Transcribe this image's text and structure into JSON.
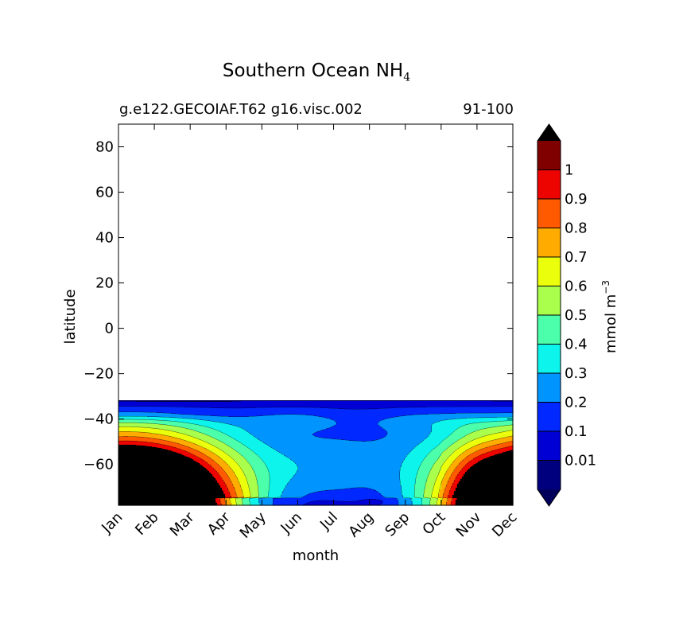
{
  "chart_data": {
    "type": "contourf",
    "title": "Southern Ocean NH",
    "title_subscript": "4",
    "subtitle_left": "g.e122.GECOIAF.T62 g16.visc.002",
    "subtitle_right": "91-100",
    "xlabel": "month",
    "ylabel": "latitude",
    "x_ticks": [
      "Jan",
      "Feb",
      "Mar",
      "Apr",
      "May",
      "Jun",
      "Jul",
      "Aug",
      "Sep",
      "Oct",
      "Nov",
      "Dec"
    ],
    "y_ticks": [
      80,
      60,
      40,
      20,
      0,
      -20,
      -40,
      -60
    ],
    "ylim": [
      -78,
      90
    ],
    "data_lat_max": -32,
    "colorbar": {
      "label": "mmol m",
      "label_superscript": "−3",
      "extend": "both",
      "levels": [
        0.01,
        0.1,
        0.2,
        0.3,
        0.4,
        0.5,
        0.6,
        0.7,
        0.8,
        0.9,
        1
      ],
      "tick_labels": [
        "0.01",
        "0.1",
        "0.2",
        "0.3",
        "0.4",
        "0.5",
        "0.6",
        "0.7",
        "0.8",
        "0.9",
        "1"
      ],
      "colors": [
        "#00007f",
        "#0000d4",
        "#0028ff",
        "#0094ff",
        "#0cf4eb",
        "#4cffaa",
        "#aaff4c",
        "#ebff0c",
        "#ffab00",
        "#ff5a00",
        "#ed0400",
        "#800000"
      ],
      "under_color": "#00005a",
      "over_color": "#000000"
    },
    "notes": "NH4 concentration is low (<0.3) south of -32 in austral winter (May–Oct) and exceeds 1 mmol m^-3 near -50 to -78 in summer (Dec–Mar)."
  }
}
